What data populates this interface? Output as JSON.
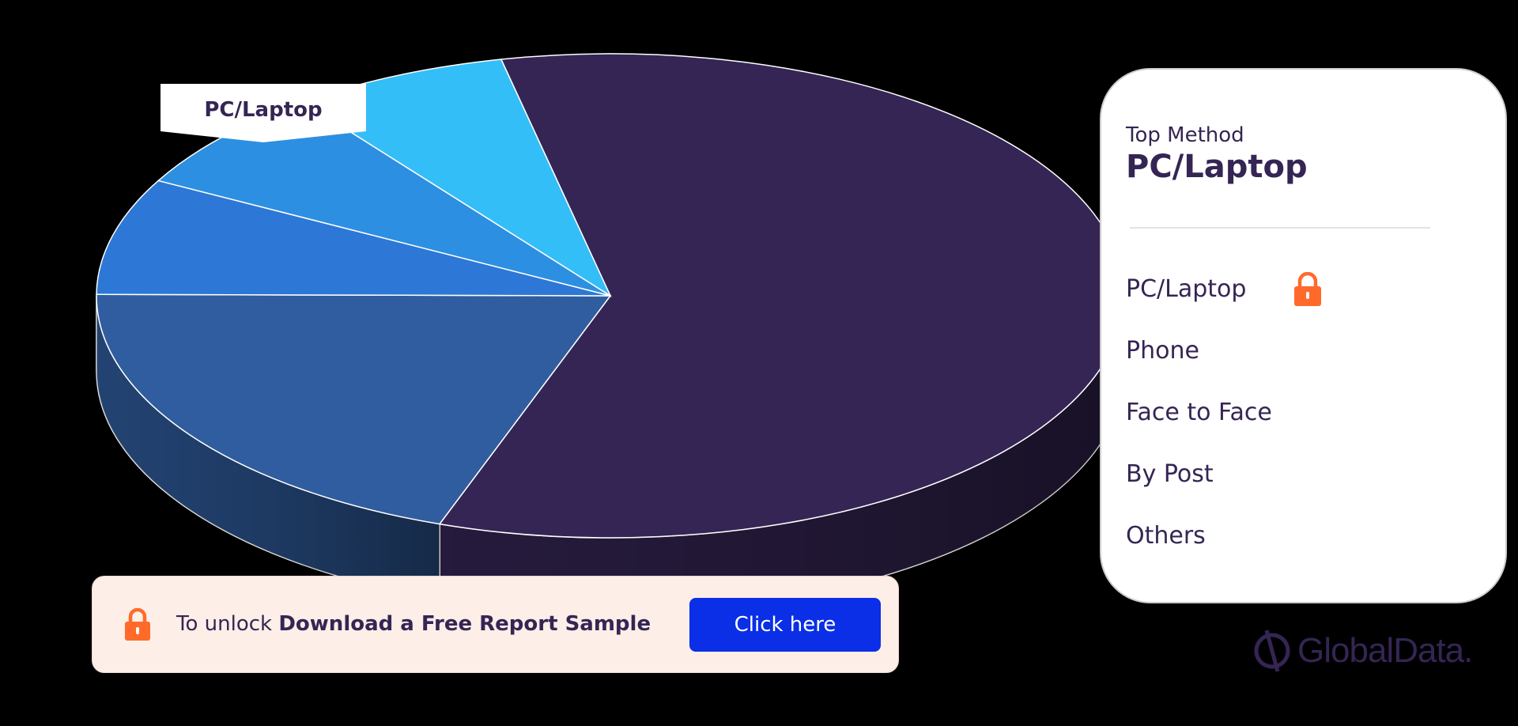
{
  "chart_data": {
    "type": "pie",
    "callout": "PC/Laptop",
    "slices": [
      {
        "label": "PC/Laptop",
        "value": 58.8,
        "color": "#352554"
      },
      {
        "label": "Phone",
        "value": 19.7,
        "color": "#305d9f"
      },
      {
        "label": "Face to Face",
        "value": 7.8,
        "color": "#2d78d6"
      },
      {
        "label": "By Post",
        "value": 6.9,
        "color": "#2d8fe1"
      },
      {
        "label": "Others",
        "value": 6.8,
        "color": "#34bef8"
      }
    ]
  },
  "summary": {
    "top_label": "Top Method",
    "top_value": "PC/Laptop",
    "legend": [
      "PC/Laptop",
      "Phone",
      "Face to Face",
      "By Post",
      "Others"
    ]
  },
  "unlock": {
    "prefix": "To unlock",
    "bold": "Download a Free Report Sample",
    "button": "Click here"
  },
  "brand": {
    "name": "GlobalData."
  },
  "colors": {
    "accent": "#ff6a2b",
    "button": "#0a2fe6",
    "text": "#352554"
  }
}
